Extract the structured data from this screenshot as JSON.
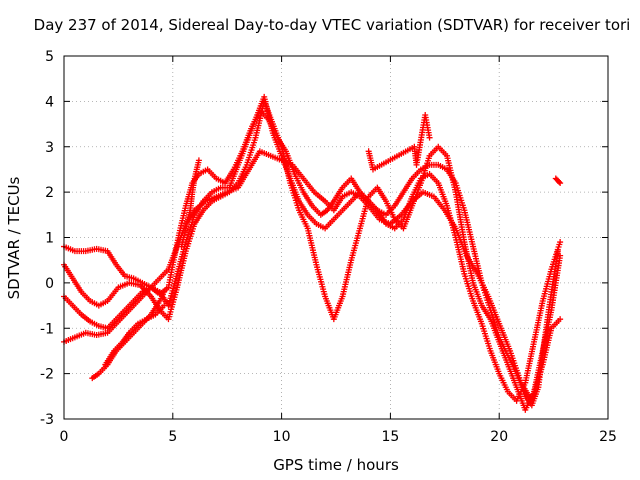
{
  "chart_data": {
    "type": "scatter",
    "title": "Day 237 of 2014, Sidereal Day-to-day VTEC variation (SDTVAR) for receiver tori",
    "xlabel": "GPS time / hours",
    "ylabel": "SDTVAR / TECUs",
    "xlim": [
      0,
      25
    ],
    "ylim": [
      -3,
      5
    ],
    "xticks": [
      0,
      5,
      10,
      15,
      20,
      25
    ],
    "yticks": [
      -3,
      -2,
      -1,
      0,
      1,
      2,
      3,
      4,
      5
    ],
    "xtick_labels": [
      "0",
      "5",
      "10",
      "15",
      "20",
      "25"
    ],
    "ytick_labels": [
      "-3",
      "-2",
      "-1",
      "0",
      "1",
      "2",
      "3",
      "4",
      "5"
    ],
    "grid": true,
    "marker": "plus",
    "color": "#ff0000",
    "series": [
      {
        "x": [
          0.0,
          0.5,
          1.0,
          1.5,
          2.0,
          2.4,
          2.8,
          3.2,
          3.6,
          4.0,
          4.4,
          4.8,
          5.0,
          5.3,
          5.6,
          5.9,
          6.2,
          6.6,
          7.0,
          7.4,
          7.8,
          8.2,
          8.6,
          9.0,
          9.4,
          9.8,
          10.2,
          10.6,
          11.0,
          11.4,
          11.8,
          12.1,
          12.4,
          12.8,
          13.2,
          13.6,
          14.0,
          14.4,
          14.8,
          15.2,
          15.6,
          16.0,
          16.4,
          16.8,
          17.2,
          17.6,
          18.0,
          18.4,
          18.8,
          19.2,
          19.6,
          20.0,
          20.4,
          20.8,
          21.2,
          21.5,
          21.8,
          22.1,
          22.4,
          22.7
        ],
        "y": [
          0.8,
          0.7,
          0.7,
          0.75,
          0.7,
          0.4,
          0.15,
          0.1,
          0.0,
          -0.1,
          -0.25,
          -0.1,
          0.4,
          1.1,
          1.7,
          2.2,
          2.4,
          2.5,
          2.3,
          2.2,
          2.5,
          2.9,
          3.4,
          3.8,
          3.6,
          3.2,
          2.9,
          2.4,
          2.0,
          1.7,
          1.5,
          1.6,
          1.8,
          2.1,
          2.3,
          2.0,
          1.8,
          1.6,
          1.5,
          1.7,
          2.0,
          2.3,
          2.5,
          2.6,
          2.6,
          2.5,
          2.2,
          1.6,
          0.8,
          0.0,
          -0.6,
          -1.2,
          -1.6,
          -2.0,
          -2.5,
          -2.7,
          -2.3,
          -1.2,
          -0.2,
          0.7
        ]
      },
      {
        "x": [
          0.0,
          0.4,
          0.8,
          1.2,
          1.6,
          2.0,
          2.5,
          3.0,
          3.5,
          4.0,
          4.4,
          4.8,
          5.2,
          5.6,
          6.0,
          6.4,
          6.8,
          7.2,
          7.6,
          8.0,
          8.4,
          8.8,
          9.2,
          9.6,
          10.0,
          10.4,
          10.8,
          11.2,
          11.6,
          12.0,
          12.4,
          12.8,
          13.2,
          13.6,
          14.0,
          14.4,
          14.8,
          15.2,
          15.6,
          16.0,
          16.4,
          16.8,
          17.2,
          17.6,
          18.0,
          18.4,
          18.8,
          19.2,
          19.6,
          20.0,
          20.4,
          20.8,
          21.2,
          21.6,
          22.0,
          22.4,
          22.8
        ],
        "y": [
          0.4,
          0.1,
          -0.2,
          -0.4,
          -0.5,
          -0.4,
          -0.1,
          0.0,
          -0.05,
          -0.3,
          -0.6,
          -0.8,
          -0.1,
          0.7,
          1.3,
          1.6,
          1.8,
          1.9,
          2.0,
          2.2,
          2.6,
          3.2,
          4.0,
          3.5,
          3.0,
          2.2,
          1.6,
          1.2,
          0.4,
          -0.3,
          -0.8,
          -0.3,
          0.5,
          1.2,
          1.9,
          2.1,
          1.8,
          1.4,
          1.2,
          1.7,
          2.2,
          2.8,
          3.0,
          2.8,
          2.0,
          0.9,
          0.0,
          -0.5,
          -0.8,
          -1.3,
          -1.8,
          -2.3,
          -2.8,
          -2.4,
          -1.5,
          -0.6,
          0.6
        ]
      },
      {
        "x": [
          0.0,
          0.5,
          1.0,
          1.5,
          2.0,
          2.4,
          2.8,
          3.2,
          3.6,
          4.0,
          4.4,
          4.8,
          5.2,
          5.6,
          6.0,
          6.5,
          7.0,
          7.5,
          8.0,
          8.5,
          9.0,
          9.5,
          10.0,
          10.5,
          11.0,
          11.5,
          12.0,
          12.4,
          12.8,
          13.2,
          13.6,
          14.0,
          14.5,
          15.0,
          15.5,
          16.0,
          16.5,
          17.0,
          17.5,
          18.0,
          18.5,
          19.0,
          19.5,
          20.0,
          20.5,
          21.0,
          21.5,
          22.0,
          22.4,
          22.8
        ],
        "y": [
          -1.3,
          -1.2,
          -1.1,
          -1.15,
          -1.1,
          -0.9,
          -0.7,
          -0.5,
          -0.3,
          -0.1,
          0.1,
          0.3,
          0.8,
          1.3,
          1.6,
          1.8,
          1.9,
          2.0,
          2.1,
          2.5,
          2.9,
          2.8,
          2.7,
          2.6,
          2.3,
          2.0,
          1.8,
          1.6,
          1.9,
          2.0,
          1.9,
          1.7,
          1.4,
          1.3,
          1.5,
          1.8,
          2.0,
          1.9,
          1.6,
          1.2,
          0.6,
          0.2,
          -0.3,
          -0.9,
          -1.5,
          -2.2,
          -2.6,
          -1.8,
          -1.0,
          -0.8
        ]
      },
      {
        "x": [
          0.0,
          0.4,
          0.8,
          1.2,
          1.6,
          2.0,
          2.4,
          2.8,
          3.2,
          3.6,
          4.0,
          4.4,
          4.8,
          5.2,
          5.6,
          6.0,
          6.4,
          6.8,
          7.2,
          7.6,
          8.0,
          8.4,
          8.8,
          9.2,
          9.6,
          10.0,
          10.4,
          10.8,
          11.2,
          11.6,
          12.0,
          12.4,
          12.8,
          13.2,
          13.6,
          14.0,
          14.4,
          14.8,
          15.2,
          15.6,
          16.0,
          16.4,
          16.8,
          17.2,
          17.6,
          18.0,
          18.4,
          18.8,
          19.2,
          19.6,
          20.0,
          20.4,
          20.8,
          21.2,
          21.6,
          22.0,
          22.4,
          22.8
        ],
        "y": [
          -0.3,
          -0.5,
          -0.7,
          -0.85,
          -0.95,
          -1.0,
          -0.8,
          -0.6,
          -0.4,
          -0.2,
          -0.1,
          -0.2,
          -0.5,
          0.2,
          0.9,
          1.5,
          1.8,
          2.0,
          2.1,
          2.1,
          2.6,
          3.1,
          3.6,
          4.1,
          3.3,
          2.8,
          2.3,
          1.8,
          1.5,
          1.3,
          1.2,
          1.4,
          1.6,
          1.8,
          2.0,
          1.8,
          1.6,
          1.3,
          1.2,
          1.4,
          1.9,
          2.3,
          2.4,
          2.2,
          1.7,
          1.0,
          0.2,
          -0.4,
          -0.9,
          -1.5,
          -2.0,
          -2.4,
          -2.6,
          -2.2,
          -1.3,
          -0.4,
          0.3,
          0.9
        ]
      },
      {
        "x": [
          1.3,
          1.6,
          2.0,
          2.4,
          2.8,
          3.2,
          3.6,
          4.0,
          4.4,
          4.6
        ],
        "y": [
          -2.1,
          -2.0,
          -1.8,
          -1.5,
          -1.3,
          -1.1,
          -0.9,
          -0.7,
          -0.4,
          -0.2
        ]
      },
      {
        "x": [
          1.9,
          2.3,
          2.7,
          3.0,
          3.4,
          3.8,
          4.2,
          4.6
        ],
        "y": [
          -1.8,
          -1.5,
          -1.3,
          -1.1,
          -0.9,
          -0.8,
          -0.7,
          -0.5
        ]
      },
      {
        "x": [
          5.4,
          5.6,
          5.8,
          5.9,
          6.0,
          6.1,
          6.2
        ],
        "y": [
          0.8,
          1.2,
          1.6,
          2.0,
          2.3,
          2.5,
          2.7
        ]
      },
      {
        "x": [
          14.0,
          14.2,
          16.1,
          16.2,
          16.6,
          16.8
        ],
        "y": [
          2.9,
          2.5,
          3.0,
          2.6,
          3.7,
          3.2
        ]
      },
      {
        "x": [
          22.6,
          22.7,
          22.8
        ],
        "y": [
          2.3,
          2.25,
          2.2
        ]
      }
    ]
  }
}
